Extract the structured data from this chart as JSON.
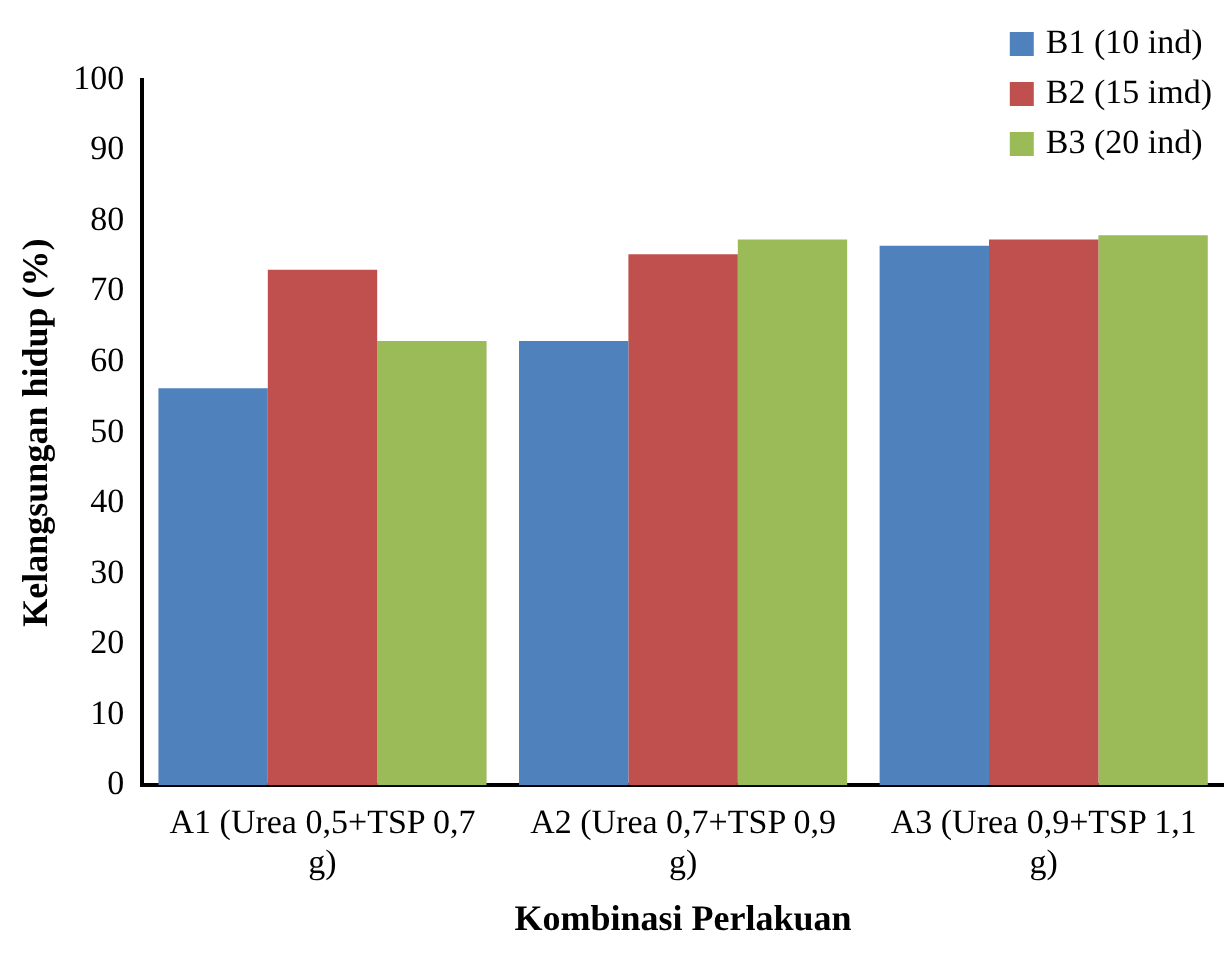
{
  "chart_data": {
    "type": "bar",
    "xlabel": "Kombinasi Perlakuan",
    "ylabel": "Kelangsungan hidup (%)",
    "categories": [
      "A1 (Urea 0,5+TSP 0,7 g)",
      "A2 (Urea 0,7+TSP 0,9 g)",
      "A3 (Urea 0,9+TSP 1,1 g)"
    ],
    "series": [
      {
        "name": "B1 (10 ind)",
        "color": "#4f81bd",
        "values": [
          56.3,
          63.0,
          76.5
        ]
      },
      {
        "name": "B2 (15 imd)",
        "color": "#c0504d",
        "values": [
          73.1,
          75.3,
          77.4
        ]
      },
      {
        "name": "B3 (20 ind)",
        "color": "#9bbb59",
        "values": [
          63.0,
          77.4,
          78.0
        ]
      }
    ],
    "ylim": [
      0,
      100
    ],
    "yticks": [
      0,
      10,
      20,
      30,
      40,
      50,
      60,
      70,
      80,
      90,
      100
    ],
    "grid": false,
    "legend": "top right"
  }
}
